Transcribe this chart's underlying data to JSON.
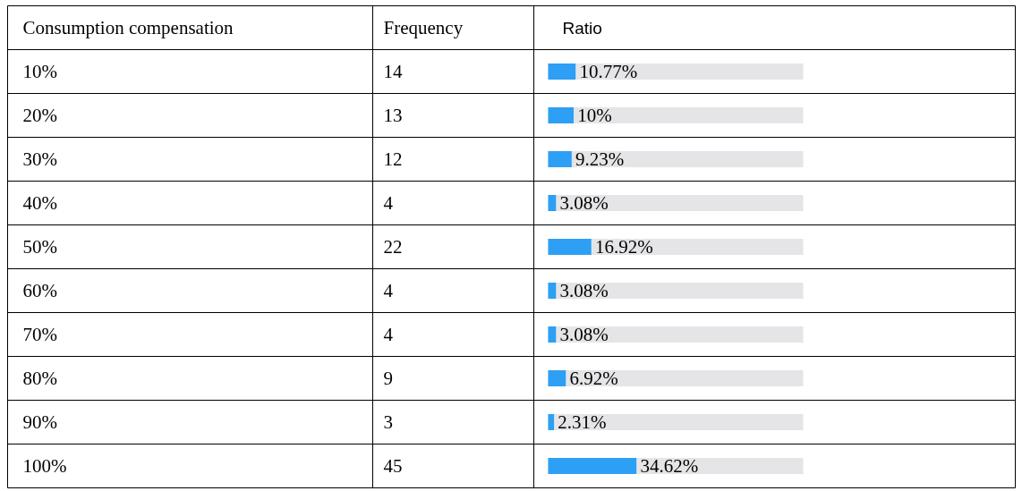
{
  "chart_data": {
    "type": "bar",
    "orientation": "horizontal",
    "ylabel": "Consumption compensation",
    "xlabel": "Ratio",
    "categories": [
      "10%",
      "20%",
      "30%",
      "40%",
      "50%",
      "60%",
      "70%",
      "80%",
      "90%",
      "100%"
    ],
    "values": [
      10.77,
      10,
      9.23,
      3.08,
      16.92,
      3.08,
      3.08,
      6.92,
      2.31,
      34.62
    ],
    "color": "#2d9ff5",
    "value_labels": [
      "10.77%",
      "10%",
      "9.23%",
      "3.08%",
      "16.92%",
      "3.08%",
      "3.08%",
      "6.92%",
      "2.31%",
      "34.62%"
    ],
    "annotations": [
      "Frequency",
      "14",
      "13",
      "12",
      "4",
      "22",
      "4",
      "4",
      "9",
      "3",
      "45"
    ]
  }
}
